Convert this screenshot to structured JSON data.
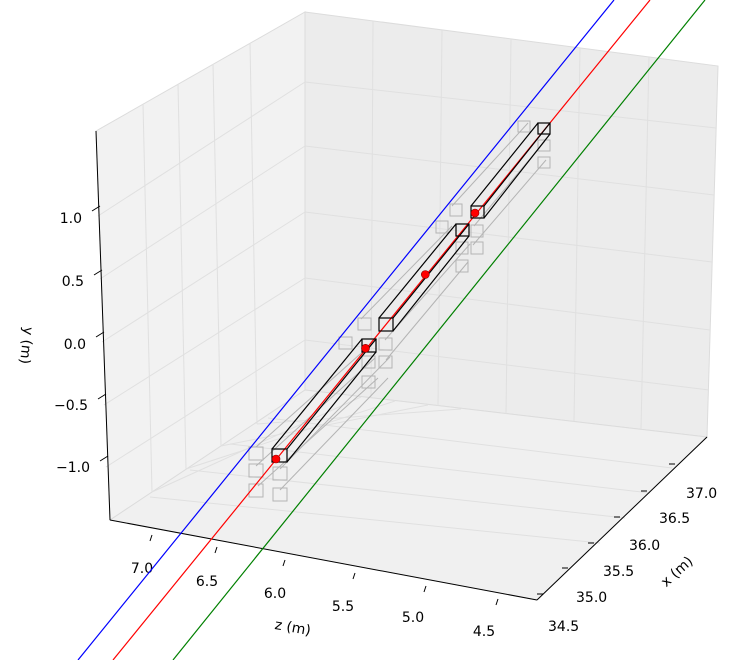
{
  "chart_data": {
    "type": "scatter",
    "projection": "3d",
    "xlabel": "x (m)",
    "ylabel": "y (m)",
    "zlabel": "z (m)",
    "x_ticks": [
      "34.5",
      "35.0",
      "35.5",
      "36.0",
      "36.5",
      "37.0"
    ],
    "y_ticks": [
      "−1.0",
      "−0.5",
      "0.0",
      "0.5",
      "1.0"
    ],
    "z_ticks": [
      "7.0",
      "6.5",
      "6.0",
      "5.5",
      "5.0",
      "4.5"
    ],
    "grid": true,
    "colors": {
      "line_blue": "#0000ff",
      "line_red": "#ff0000",
      "line_green": "#008000",
      "points": "#ff0000",
      "beams": "#000000",
      "ghost_boxes": "#b4b4b4",
      "pane": "#f2f2f2",
      "grid": "#e0e0e0"
    },
    "points": [
      {
        "x": 34.7,
        "y": -1.1,
        "z": 7.0
      },
      {
        "x": 35.6,
        "y": 0.0,
        "z": 6.2
      },
      {
        "x": 36.2,
        "y": 0.6,
        "z": 5.8
      },
      {
        "x": 36.7,
        "y": 1.0,
        "z": 5.4
      }
    ]
  }
}
